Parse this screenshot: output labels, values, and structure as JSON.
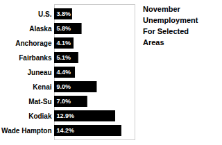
{
  "chart_data": {
    "type": "bar",
    "orientation": "horizontal",
    "title": "November\nUnemployment\nFor Selected\nAreas",
    "categories": [
      "U.S.",
      "Alaska",
      "Anchorage",
      "Fairbanks",
      "Juneau",
      "Kenai",
      "Mat-Su",
      "Kodiak",
      "Wade Hampton"
    ],
    "values": [
      3.8,
      5.8,
      4.1,
      5.1,
      4.4,
      9.0,
      7.0,
      12.9,
      14.2
    ],
    "value_labels": [
      "3.8%",
      "5.8%",
      "4.1%",
      "5.1%",
      "4.4%",
      "9.0%",
      "7.0%",
      "12.9%",
      "14.2%"
    ],
    "data_labels": true,
    "color": "#000000",
    "xlim": [
      0,
      17
    ],
    "tick_labels": "y",
    "grid": false
  }
}
